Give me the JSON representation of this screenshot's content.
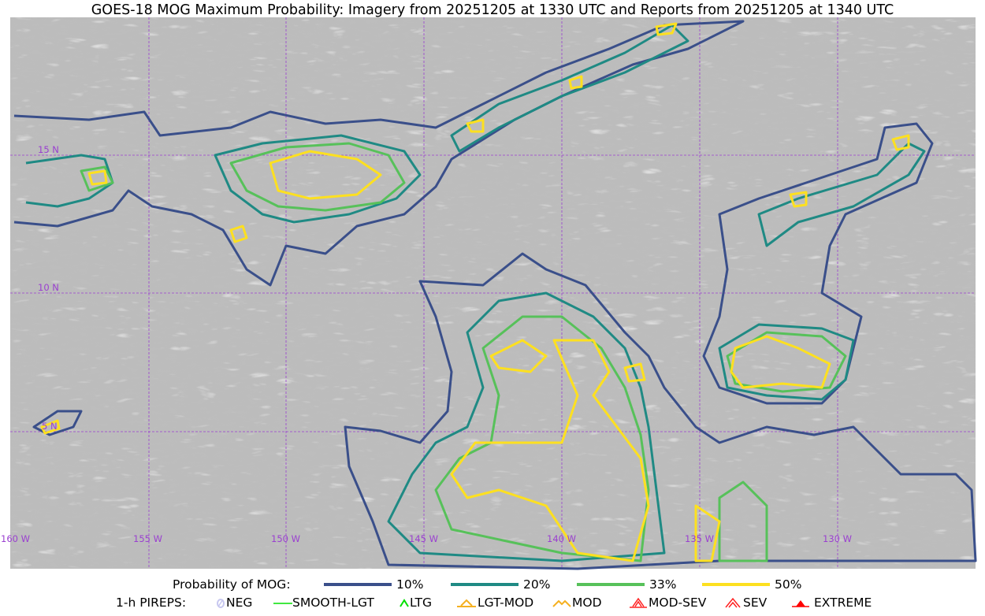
{
  "title": "GOES-18 MOG Maximum Probability: Imagery from 20251205 at 1330 UTC and Reports from 20251205 at 1340 UTC",
  "map": {
    "lon_labels": [
      "160 W",
      "155 W",
      "150 W",
      "145 W",
      "140 W",
      "135 W",
      "130 W"
    ],
    "lat_labels": [
      "15 N",
      "10 N",
      "5 N"
    ],
    "gridline_color": "#9a3fd0"
  },
  "legend": {
    "prob_label": "Probability of MOG:",
    "prob_items": [
      {
        "label": "10%",
        "color": "#3a4f8a"
      },
      {
        "label": "20%",
        "color": "#1f8a84"
      },
      {
        "label": "33%",
        "color": "#57c15a"
      },
      {
        "label": "50%",
        "color": "#fde020"
      }
    ],
    "pirep_label": "1-h PIREPS:",
    "pirep_items": [
      {
        "label": "NEG",
        "icon": "neg-icon",
        "color": "#c8c8f0"
      },
      {
        "label": "SMOOTH-LGT",
        "icon": "smooth-line-icon",
        "color": "#00e000"
      },
      {
        "label": "LTG",
        "icon": "caret-icon",
        "color": "#00e000"
      },
      {
        "label": "LGT-MOD",
        "icon": "caret-bar-icon",
        "color": "#f5b020"
      },
      {
        "label": "MOD",
        "icon": "caret-icon",
        "color": "#f5b020"
      },
      {
        "label": "MOD-SEV",
        "icon": "double-caret-bar-icon",
        "color": "#ff2020"
      },
      {
        "label": "SEV",
        "icon": "double-caret-icon",
        "color": "#ff2020"
      },
      {
        "label": "EXTREME",
        "icon": "filled-triangle-icon",
        "color": "#ff0000"
      }
    ]
  }
}
